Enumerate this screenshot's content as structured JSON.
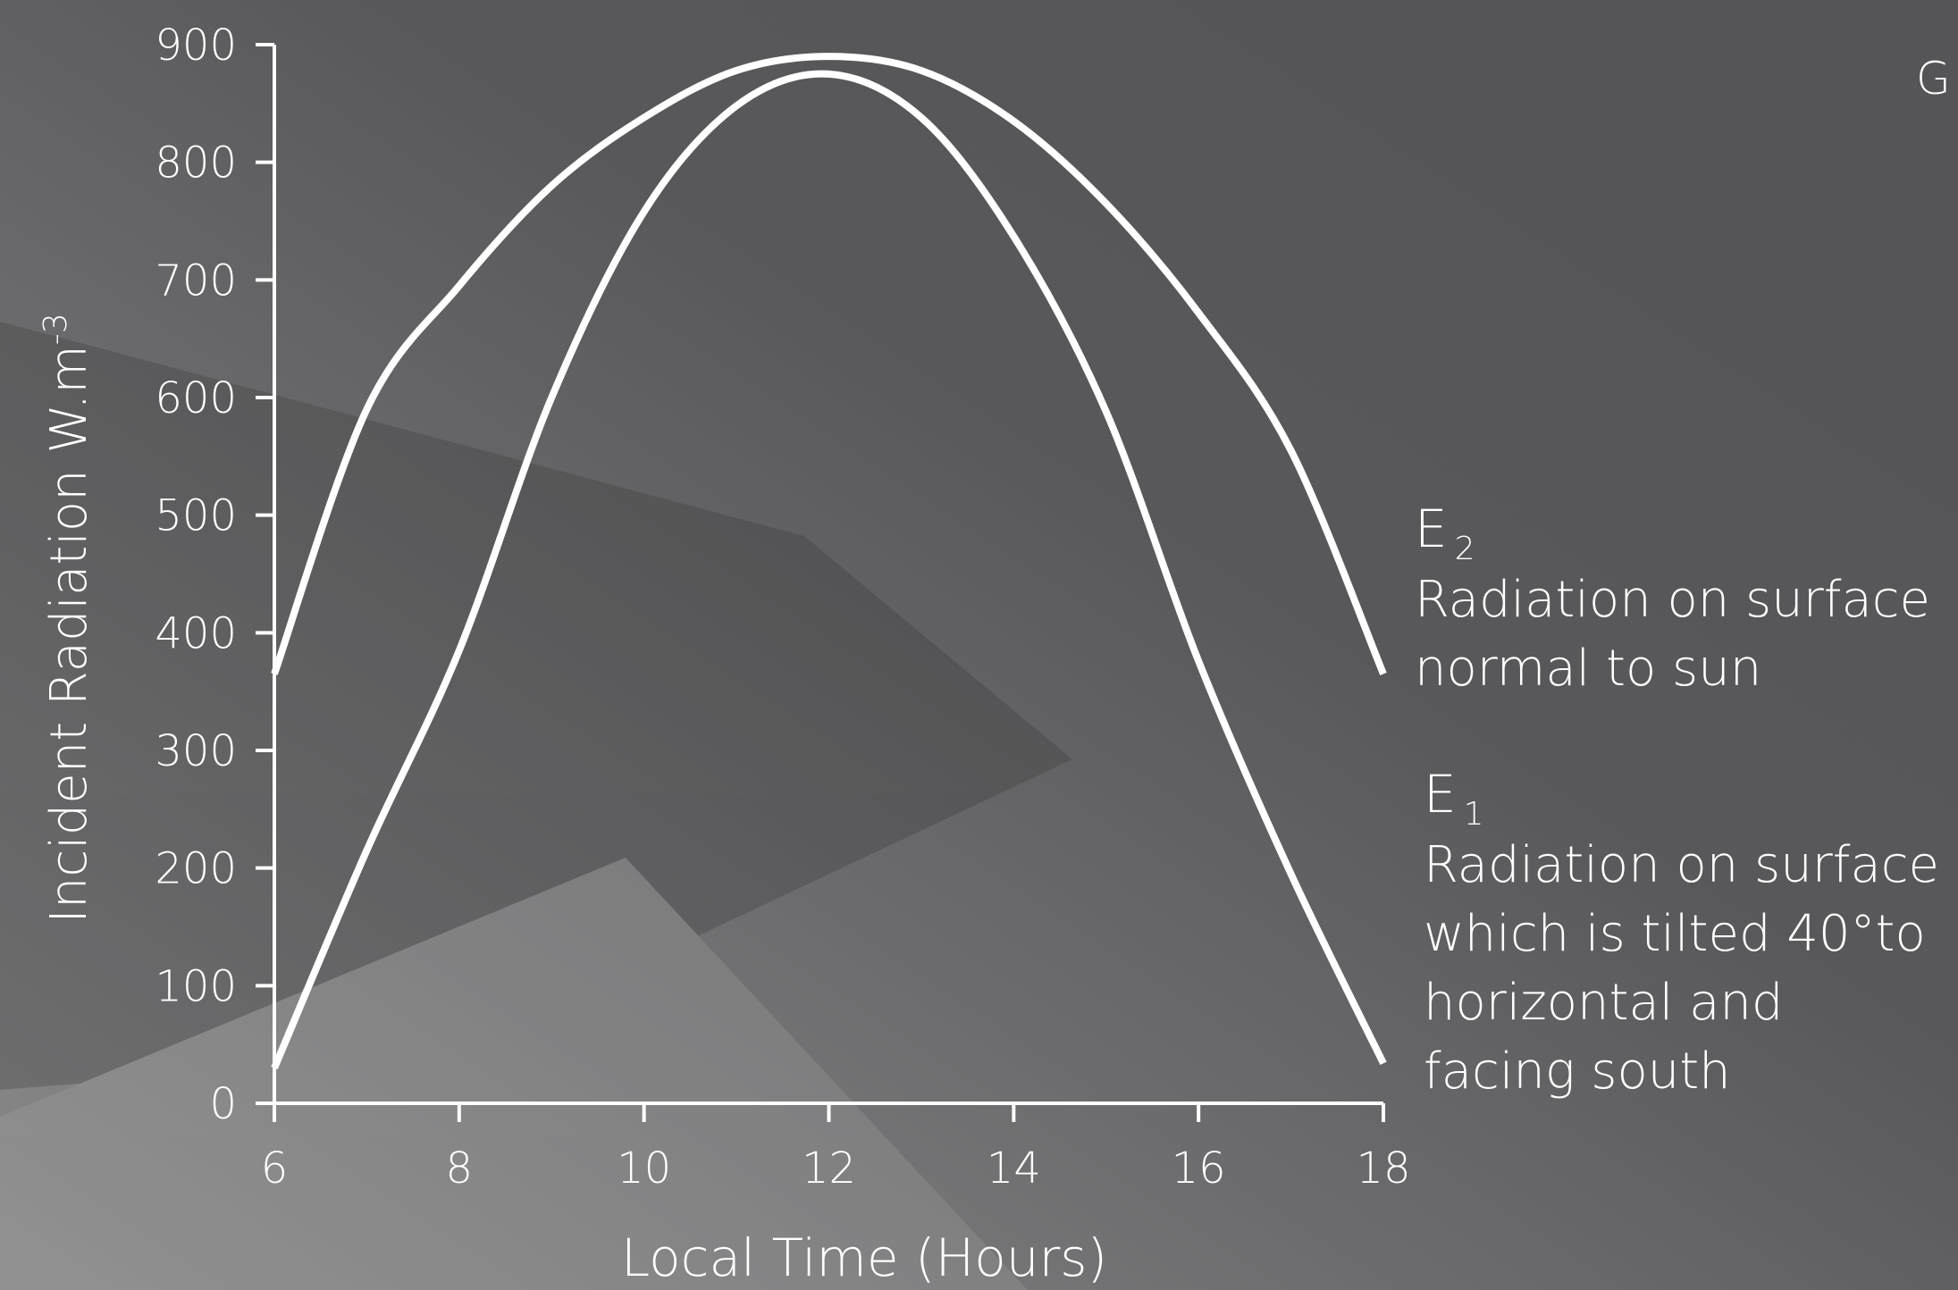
{
  "chart_data": {
    "type": "line",
    "xlabel": "Local Time (Hours)",
    "ylabel": "Incident Radiation W.m",
    "ylabel_superscript": "-3",
    "x": [
      6,
      7,
      8,
      9,
      10,
      11,
      12,
      13,
      14,
      15,
      16,
      17,
      18
    ],
    "series": [
      {
        "name": "E",
        "subscript": "2",
        "description": [
          "Radiation on surface",
          "normal to sun"
        ],
        "color": "#ffffff",
        "values": [
          365,
          590,
          695,
          780,
          838,
          878,
          890,
          878,
          835,
          765,
          672,
          555,
          365
        ]
      },
      {
        "name": "E",
        "subscript": "1",
        "description": [
          "Radiation on surface",
          "which is tilted 40°to",
          "horizontal and",
          "facing south"
        ],
        "color": "#ffffff",
        "values": [
          30,
          215,
          385,
          600,
          758,
          848,
          875,
          838,
          737,
          588,
          376,
          195,
          34
        ]
      }
    ],
    "xlim": [
      6,
      18
    ],
    "xticks": [
      6,
      8,
      10,
      12,
      14,
      16,
      18
    ],
    "ylim": [
      0,
      900
    ],
    "yticks": [
      0,
      100,
      200,
      300,
      400,
      500,
      600,
      700,
      800,
      900
    ],
    "corner_text": "G"
  }
}
